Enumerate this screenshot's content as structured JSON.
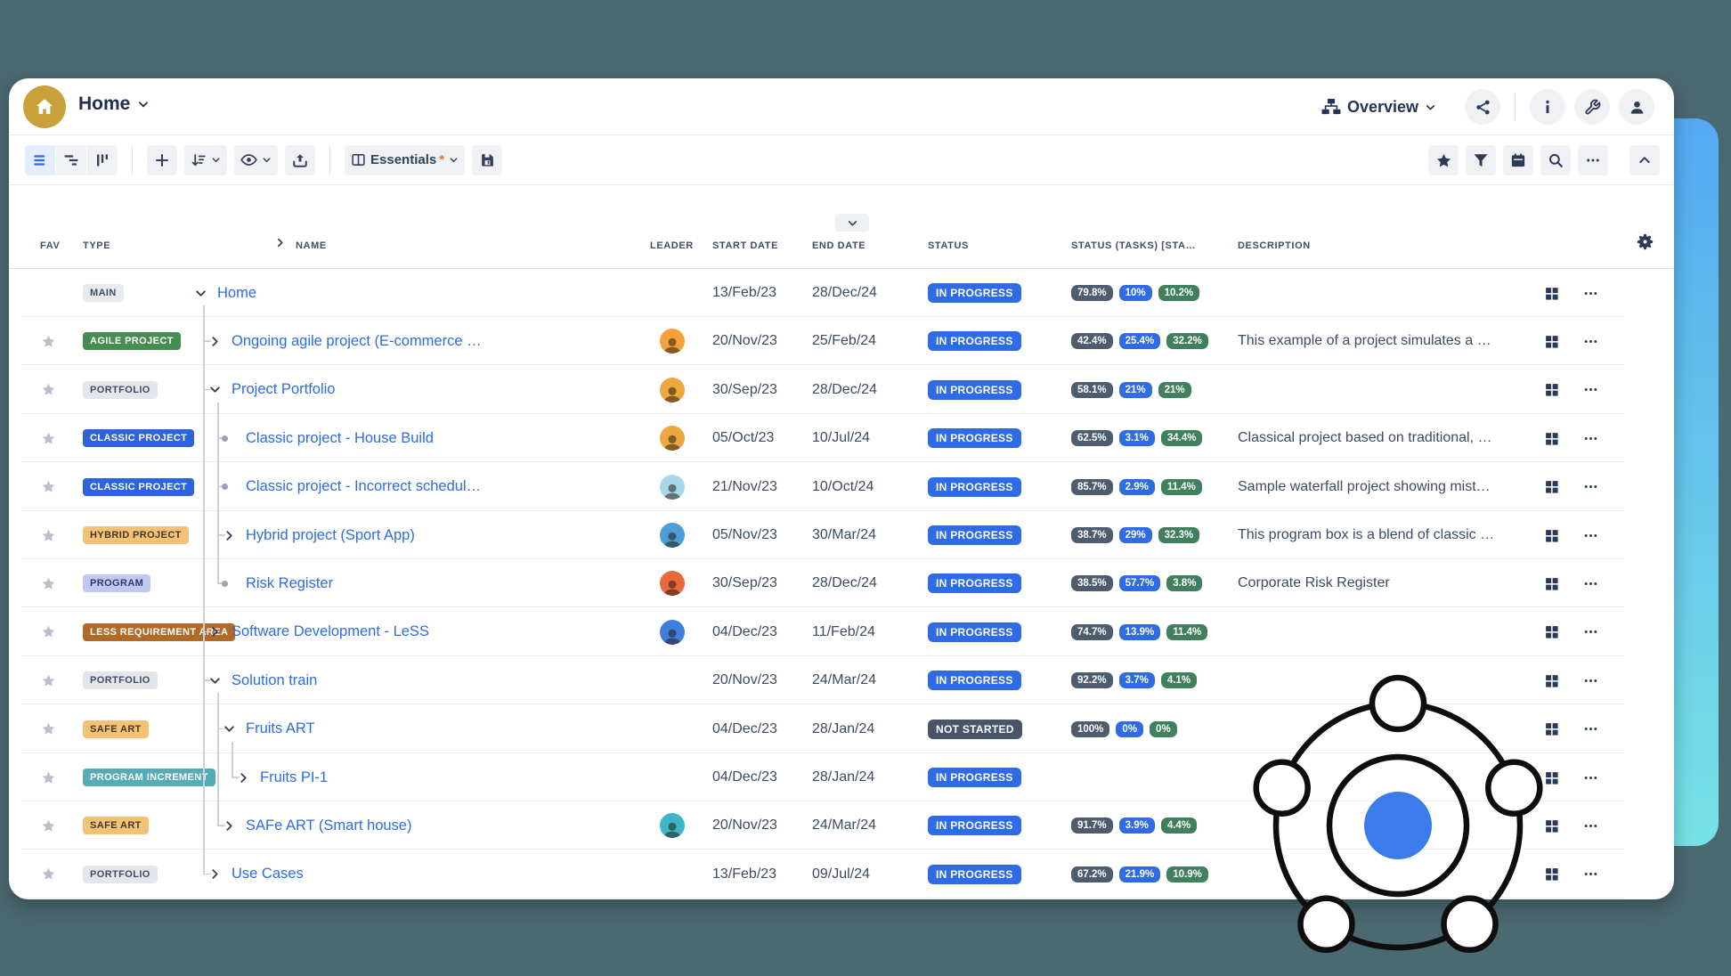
{
  "header": {
    "title": "Home",
    "view_label": "Overview",
    "icons": [
      "share",
      "info",
      "wrench",
      "user"
    ]
  },
  "toolbar": {
    "essentials_label": "Essentials",
    "essentials_marker": "*",
    "left_icons": [
      "list-view",
      "gantt-view",
      "board-view",
      "add",
      "sort",
      "eye",
      "export",
      "essentials",
      "save"
    ],
    "right_icons": [
      "star",
      "filter",
      "calendar",
      "search",
      "more",
      "collapse"
    ]
  },
  "columns": {
    "fav": "FAV",
    "type": "TYPE",
    "name": "NAME",
    "leader": "LEADER",
    "start": "START DATE",
    "end": "END DATE",
    "status": "STATUS",
    "tasks": "STATUS (TASKS) [STA…",
    "desc": "DESCRIPTION"
  },
  "table": {
    "rows": [
      {
        "fav": false,
        "type": "MAIN",
        "tk": "main",
        "level": 0,
        "exp": "down",
        "name": "Home",
        "leader": null,
        "start": "13/Feb/23",
        "end": "28/Dec/24",
        "status": "IN PROGRESS",
        "sk": "blue",
        "tasks": [
          "79.8%",
          "10%",
          "10.2%"
        ],
        "desc": ""
      },
      {
        "fav": true,
        "type": "AGILE PROJECT",
        "tk": "agile",
        "level": 1,
        "exp": "right",
        "name": "Ongoing agile project (E-commerce …",
        "leader": "#f5a13b",
        "start": "20/Nov/23",
        "end": "25/Feb/24",
        "status": "IN PROGRESS",
        "sk": "blue",
        "tasks": [
          "42.4%",
          "25.4%",
          "32.2%"
        ],
        "desc": "This example of a project simulates a …"
      },
      {
        "fav": true,
        "type": "PORTFOLIO",
        "tk": "portfolio",
        "level": 1,
        "exp": "down",
        "name": "Project Portfolio",
        "leader": "#eda73f",
        "start": "30/Sep/23",
        "end": "28/Dec/24",
        "status": "IN PROGRESS",
        "sk": "blue",
        "tasks": [
          "58.1%",
          "21%",
          "21%"
        ],
        "desc": ""
      },
      {
        "fav": true,
        "type": "CLASSIC PROJECT",
        "tk": "classic",
        "level": 2,
        "exp": "dot",
        "name": "Classic project - House Build",
        "leader": "#eda73f",
        "start": "05/Oct/23",
        "end": "10/Jul/24",
        "status": "IN PROGRESS",
        "sk": "blue",
        "tasks": [
          "62.5%",
          "3.1%",
          "34.4%"
        ],
        "desc": "Classical project based on traditional, …"
      },
      {
        "fav": true,
        "type": "CLASSIC PROJECT",
        "tk": "classic",
        "level": 2,
        "exp": "dot",
        "name": "Classic project - Incorrect schedul…",
        "leader": "#a8d8e8",
        "start": "21/Nov/23",
        "end": "10/Oct/24",
        "status": "IN PROGRESS",
        "sk": "blue",
        "tasks": [
          "85.7%",
          "2.9%",
          "11.4%"
        ],
        "desc": "Sample waterfall project showing mist…"
      },
      {
        "fav": true,
        "type": "HYBRID PROJECT",
        "tk": "hybrid",
        "level": 2,
        "exp": "right",
        "name": "Hybrid project (Sport App)",
        "leader": "#4b9fd6",
        "start": "05/Nov/23",
        "end": "30/Mar/24",
        "status": "IN PROGRESS",
        "sk": "blue",
        "tasks": [
          "38.7%",
          "29%",
          "32.3%"
        ],
        "desc": "This program box is a blend of classic …"
      },
      {
        "fav": true,
        "type": "PROGRAM",
        "tk": "program",
        "level": 2,
        "exp": "dot",
        "name": "Risk Register",
        "leader": "#e8693c",
        "start": "30/Sep/23",
        "end": "28/Dec/24",
        "status": "IN PROGRESS",
        "sk": "blue",
        "tasks": [
          "38.5%",
          "57.7%",
          "3.8%"
        ],
        "desc": "Corporate Risk Register"
      },
      {
        "fav": true,
        "type": "LESS REQUIREMENT AREA",
        "tk": "less",
        "level": 1,
        "exp": "right",
        "name": "Software Development - LeSS",
        "leader": "#3d7fdc",
        "start": "04/Dec/23",
        "end": "11/Feb/24",
        "status": "IN PROGRESS",
        "sk": "blue",
        "tasks": [
          "74.7%",
          "13.9%",
          "11.4%"
        ],
        "desc": ""
      },
      {
        "fav": true,
        "type": "PORTFOLIO",
        "tk": "portfolio",
        "level": 1,
        "exp": "down",
        "name": "Solution train",
        "leader": null,
        "start": "20/Nov/23",
        "end": "24/Mar/24",
        "status": "IN PROGRESS",
        "sk": "blue",
        "tasks": [
          "92.2%",
          "3.7%",
          "4.1%"
        ],
        "desc": ""
      },
      {
        "fav": true,
        "type": "SAFE ART",
        "tk": "safe",
        "level": 2,
        "exp": "down",
        "name": "Fruits ART",
        "leader": null,
        "start": "04/Dec/23",
        "end": "28/Jan/24",
        "status": "NOT STARTED",
        "sk": "dark",
        "tasks": [
          "100%",
          "0%",
          "0%"
        ],
        "desc": ""
      },
      {
        "fav": true,
        "type": "PROGRAM INCREMENT",
        "tk": "pi",
        "level": 3,
        "exp": "right",
        "name": "Fruits PI-1",
        "leader": null,
        "start": "04/Dec/23",
        "end": "28/Jan/24",
        "status": "IN PROGRESS",
        "sk": "blue",
        "tasks": [],
        "desc": ""
      },
      {
        "fav": true,
        "type": "SAFE ART",
        "tk": "safe",
        "level": 2,
        "exp": "right",
        "name": "SAFe ART (Smart house)",
        "leader": "#3fb5c9",
        "start": "20/Nov/23",
        "end": "24/Mar/24",
        "status": "IN PROGRESS",
        "sk": "blue",
        "tasks": [
          "91.7%",
          "3.9%",
          "4.4%"
        ],
        "desc": ""
      },
      {
        "fav": true,
        "type": "PORTFOLIO",
        "tk": "portfolio",
        "level": 1,
        "exp": "right",
        "name": "Use Cases",
        "leader": null,
        "start": "13/Feb/23",
        "end": "09/Jul/24",
        "status": "IN PROGRESS",
        "sk": "blue",
        "tasks": [
          "67.2%",
          "21.9%",
          "10.9%"
        ],
        "desc": ""
      }
    ]
  },
  "colors": {
    "background": "#4b6971",
    "link": "#2c6ce6",
    "logo_gold": "#c9a13b",
    "panel_top": "#55a9f2",
    "panel_bottom": "#77e2e5",
    "decor_blue": "#3b7cea",
    "status_in_progress": "#2e6be5",
    "status_not_started": "#49566a",
    "task_dark": "#4e5c70",
    "task_blue": "#2e6be5",
    "task_green": "#41805c",
    "type_main_bg": "#e8eaee",
    "type_main_fg": "#3f4e68",
    "type_agile_bg": "#478c50",
    "type_portfolio_bg": "#e4e6eb",
    "type_portfolio_fg": "#3f4e68",
    "type_classic_bg": "#2d63dc",
    "type_hybrid_bg": "#f2c277",
    "type_hybrid_fg": "#453725",
    "type_program_bg": "#bfc8f6",
    "type_program_fg": "#303c5c",
    "type_less_bg": "#b16a27",
    "type_safe_bg": "#f2c277",
    "type_safe_fg": "#453725",
    "type_pi_bg": "#57abb4"
  }
}
